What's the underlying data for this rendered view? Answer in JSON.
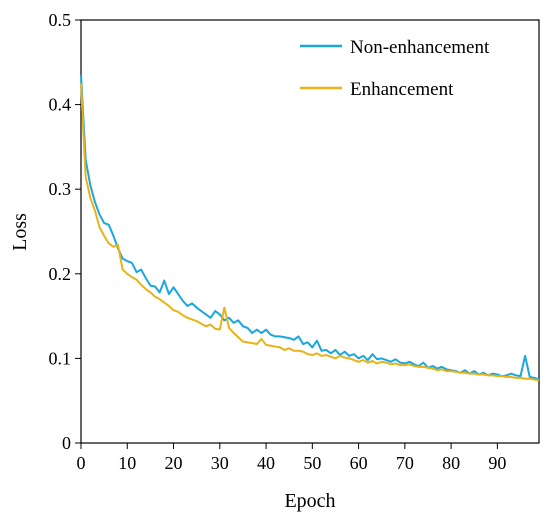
{
  "chart_data": {
    "type": "line",
    "xlabel": "Epoch",
    "ylabel": "Loss",
    "xlim": [
      0,
      99
    ],
    "ylim": [
      0,
      0.5
    ],
    "xticks": [
      0,
      10,
      20,
      30,
      40,
      50,
      60,
      70,
      80,
      90
    ],
    "yticks": [
      0,
      0.1,
      0.2,
      0.3,
      0.4,
      0.5
    ],
    "ytick_labels": [
      "0",
      "0.1",
      "0.2",
      "0.3",
      "0.4",
      "0.5"
    ],
    "grid": false,
    "legend_position": "top-right",
    "series": [
      {
        "name": "Non-enhancement",
        "color": "#1aa7de",
        "x": [
          0,
          1,
          2,
          3,
          4,
          5,
          6,
          7,
          8,
          9,
          10,
          11,
          12,
          13,
          14,
          15,
          16,
          17,
          18,
          19,
          20,
          21,
          22,
          23,
          24,
          25,
          26,
          27,
          28,
          29,
          30,
          31,
          32,
          33,
          34,
          35,
          36,
          37,
          38,
          39,
          40,
          41,
          42,
          43,
          44,
          45,
          46,
          47,
          48,
          49,
          50,
          51,
          52,
          53,
          54,
          55,
          56,
          57,
          58,
          59,
          60,
          61,
          62,
          63,
          64,
          65,
          66,
          67,
          68,
          69,
          70,
          71,
          72,
          73,
          74,
          75,
          76,
          77,
          78,
          79,
          80,
          81,
          82,
          83,
          84,
          85,
          86,
          87,
          88,
          89,
          90,
          91,
          92,
          93,
          94,
          95,
          96,
          97,
          98,
          99
        ],
        "values": [
          0.435,
          0.335,
          0.305,
          0.285,
          0.27,
          0.26,
          0.258,
          0.245,
          0.23,
          0.218,
          0.215,
          0.213,
          0.202,
          0.205,
          0.195,
          0.186,
          0.185,
          0.178,
          0.192,
          0.176,
          0.184,
          0.176,
          0.168,
          0.162,
          0.165,
          0.16,
          0.156,
          0.152,
          0.148,
          0.156,
          0.152,
          0.145,
          0.148,
          0.142,
          0.145,
          0.138,
          0.136,
          0.13,
          0.134,
          0.13,
          0.134,
          0.128,
          0.126,
          0.126,
          0.125,
          0.124,
          0.122,
          0.126,
          0.117,
          0.119,
          0.113,
          0.121,
          0.109,
          0.11,
          0.106,
          0.11,
          0.104,
          0.108,
          0.103,
          0.105,
          0.1,
          0.103,
          0.098,
          0.105,
          0.099,
          0.1,
          0.098,
          0.096,
          0.099,
          0.095,
          0.094,
          0.096,
          0.093,
          0.091,
          0.095,
          0.089,
          0.091,
          0.088,
          0.09,
          0.087,
          0.086,
          0.085,
          0.083,
          0.086,
          0.082,
          0.085,
          0.081,
          0.083,
          0.08,
          0.082,
          0.081,
          0.079,
          0.08,
          0.082,
          0.08,
          0.079,
          0.103,
          0.078,
          0.077,
          0.075
        ]
      },
      {
        "name": "Enhancement",
        "color": "#e8b318",
        "x": [
          0,
          1,
          2,
          3,
          4,
          5,
          6,
          7,
          8,
          9,
          10,
          11,
          12,
          13,
          14,
          15,
          16,
          17,
          18,
          19,
          20,
          21,
          22,
          23,
          24,
          25,
          26,
          27,
          28,
          29,
          30,
          31,
          32,
          33,
          34,
          35,
          36,
          37,
          38,
          39,
          40,
          41,
          42,
          43,
          44,
          45,
          46,
          47,
          48,
          49,
          50,
          51,
          52,
          53,
          54,
          55,
          56,
          57,
          58,
          59,
          60,
          61,
          62,
          63,
          64,
          65,
          66,
          67,
          68,
          69,
          70,
          71,
          72,
          73,
          74,
          75,
          76,
          77,
          78,
          79,
          80,
          81,
          82,
          83,
          84,
          85,
          86,
          87,
          88,
          89,
          90,
          91,
          92,
          93,
          94,
          95,
          96,
          97,
          98,
          99
        ],
        "values": [
          0.425,
          0.315,
          0.29,
          0.275,
          0.255,
          0.245,
          0.236,
          0.232,
          0.234,
          0.205,
          0.2,
          0.196,
          0.193,
          0.187,
          0.182,
          0.178,
          0.173,
          0.17,
          0.166,
          0.162,
          0.157,
          0.155,
          0.151,
          0.148,
          0.146,
          0.144,
          0.141,
          0.138,
          0.14,
          0.135,
          0.134,
          0.16,
          0.136,
          0.13,
          0.125,
          0.12,
          0.119,
          0.118,
          0.117,
          0.123,
          0.116,
          0.115,
          0.114,
          0.113,
          0.11,
          0.112,
          0.109,
          0.109,
          0.108,
          0.105,
          0.104,
          0.106,
          0.103,
          0.104,
          0.102,
          0.1,
          0.103,
          0.101,
          0.1,
          0.098,
          0.096,
          0.098,
          0.095,
          0.097,
          0.094,
          0.096,
          0.095,
          0.093,
          0.094,
          0.092,
          0.092,
          0.093,
          0.091,
          0.09,
          0.09,
          0.089,
          0.088,
          0.086,
          0.087,
          0.085,
          0.085,
          0.084,
          0.083,
          0.083,
          0.082,
          0.082,
          0.081,
          0.081,
          0.08,
          0.08,
          0.079,
          0.079,
          0.078,
          0.078,
          0.077,
          0.077,
          0.076,
          0.076,
          0.075,
          0.074
        ]
      }
    ]
  }
}
